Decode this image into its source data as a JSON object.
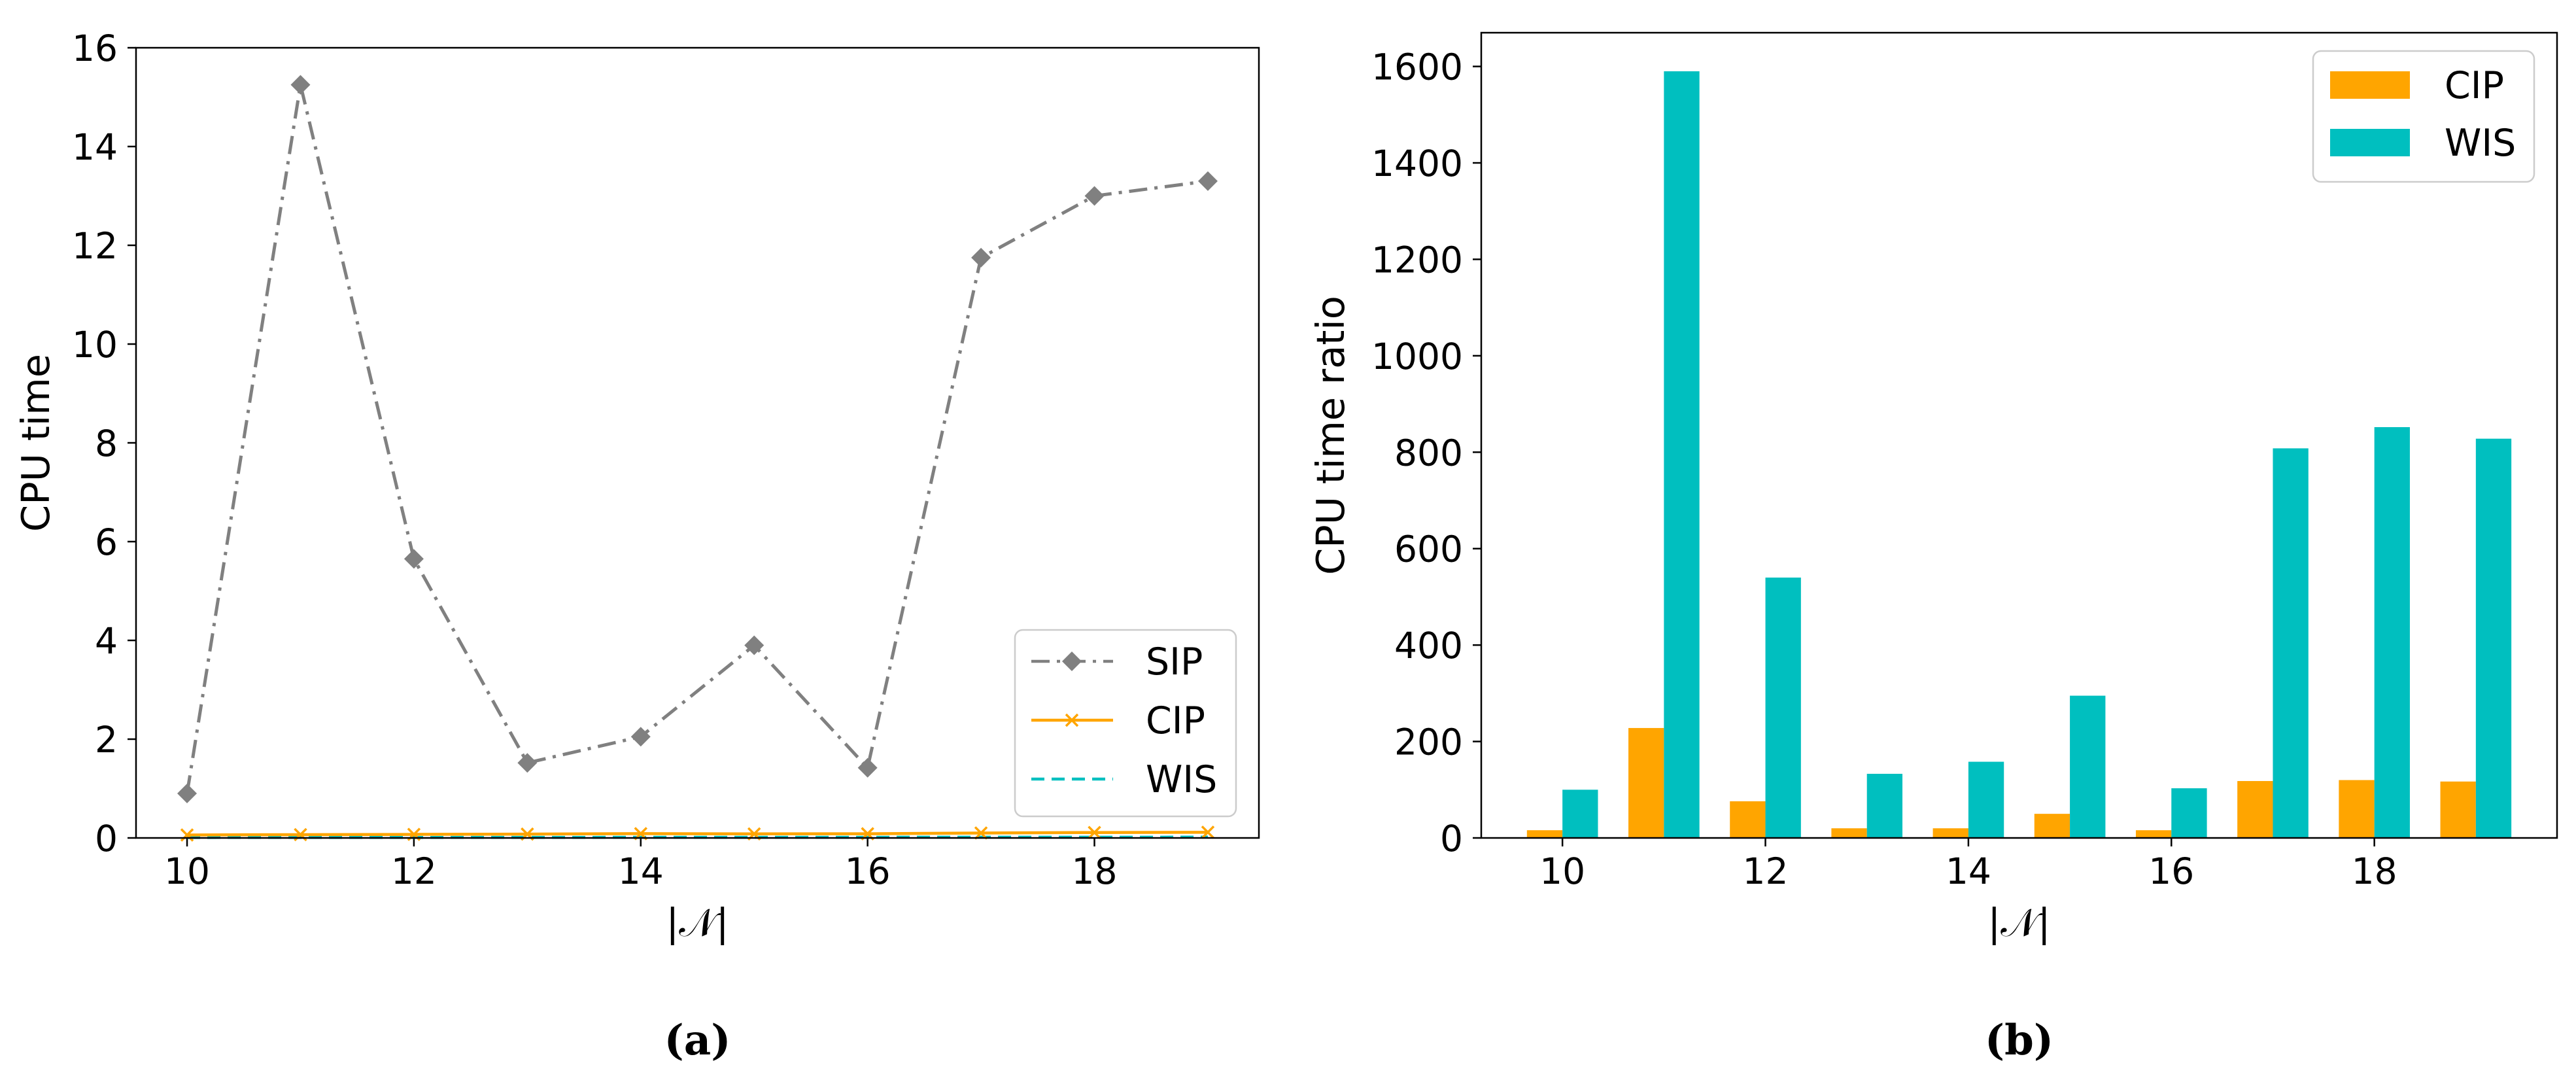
{
  "chart_data": [
    {
      "type": "line",
      "panel": "a",
      "caption": "(a)",
      "xlabel": "|𝒩|",
      "ylabel": "CPU time",
      "x": [
        10,
        11,
        12,
        13,
        14,
        15,
        16,
        17,
        18,
        19
      ],
      "xlim": [
        9.55,
        19.45
      ],
      "ylim": [
        0,
        16
      ],
      "xticks": [
        10,
        12,
        14,
        16,
        18
      ],
      "yticks": [
        0,
        2,
        4,
        6,
        8,
        10,
        12,
        14,
        16
      ],
      "legend_position": "lower-right",
      "series": [
        {
          "name": "SIP",
          "color": "#808080",
          "style": "dash-dot",
          "marker": "diamond",
          "values": [
            0.9,
            15.25,
            5.65,
            1.52,
            2.05,
            3.9,
            1.42,
            11.75,
            13.0,
            13.3
          ]
        },
        {
          "name": "CIP",
          "color": "#FFA500",
          "style": "solid",
          "marker": "x",
          "values": [
            0.06,
            0.067,
            0.072,
            0.078,
            0.087,
            0.082,
            0.085,
            0.1,
            0.11,
            0.115
          ]
        },
        {
          "name": "WIS",
          "color": "#00BFBF",
          "style": "dashed",
          "marker": "none",
          "values": [
            0.009,
            0.0096,
            0.0105,
            0.0114,
            0.013,
            0.0133,
            0.0139,
            0.0146,
            0.0153,
            0.016
          ]
        }
      ]
    },
    {
      "type": "bar",
      "panel": "b",
      "caption": "(b)",
      "xlabel": "|𝒩|",
      "ylabel": "CPU time ratio",
      "categories": [
        10,
        11,
        12,
        13,
        14,
        15,
        16,
        17,
        18,
        19
      ],
      "xlim": [
        9.2,
        19.8
      ],
      "ylim": [
        0,
        1670
      ],
      "xticks": [
        10,
        12,
        14,
        16,
        18
      ],
      "yticks": [
        0,
        200,
        400,
        600,
        800,
        1000,
        1200,
        1400,
        1600
      ],
      "legend_position": "top-right",
      "series": [
        {
          "name": "CIP",
          "color": "#FFA500",
          "values": [
            16,
            228,
            76,
            20,
            20,
            50,
            16,
            118,
            120,
            117
          ]
        },
        {
          "name": "WIS",
          "color": "#00BFBF",
          "values": [
            100,
            1590,
            540,
            133,
            158,
            295,
            103,
            808,
            852,
            828
          ]
        }
      ]
    }
  ]
}
